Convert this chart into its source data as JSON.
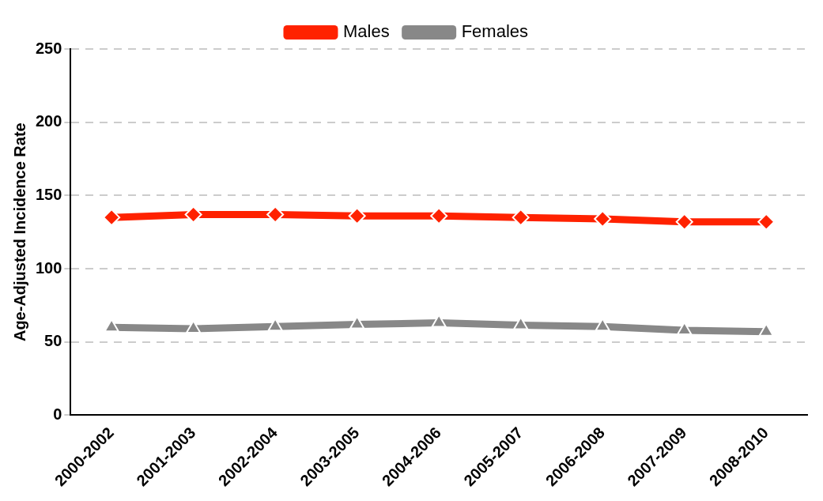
{
  "chart_data": {
    "type": "line",
    "ylabel": "Age-Adjusted Incidence Rate",
    "categories": [
      "2000-2002",
      "2001-2003",
      "2002-2004",
      "2003-2005",
      "2004-2006",
      "2005-2007",
      "2006-2008",
      "2007-2009",
      "2008-2010"
    ],
    "series": [
      {
        "name": "Males",
        "color": "#ff2200",
        "marker": "diamond",
        "values": [
          135,
          137,
          137,
          136,
          136,
          135,
          134,
          132,
          132
        ]
      },
      {
        "name": "Females",
        "color": "#888888",
        "marker": "triangle",
        "values": [
          60,
          59,
          60.5,
          62,
          63,
          61.5,
          60.5,
          58,
          57
        ]
      }
    ],
    "ylim": [
      0,
      250
    ],
    "yticks": [
      0,
      50,
      100,
      150,
      200,
      250
    ],
    "grid": "y",
    "legend": "top",
    "line_style": "solid"
  }
}
